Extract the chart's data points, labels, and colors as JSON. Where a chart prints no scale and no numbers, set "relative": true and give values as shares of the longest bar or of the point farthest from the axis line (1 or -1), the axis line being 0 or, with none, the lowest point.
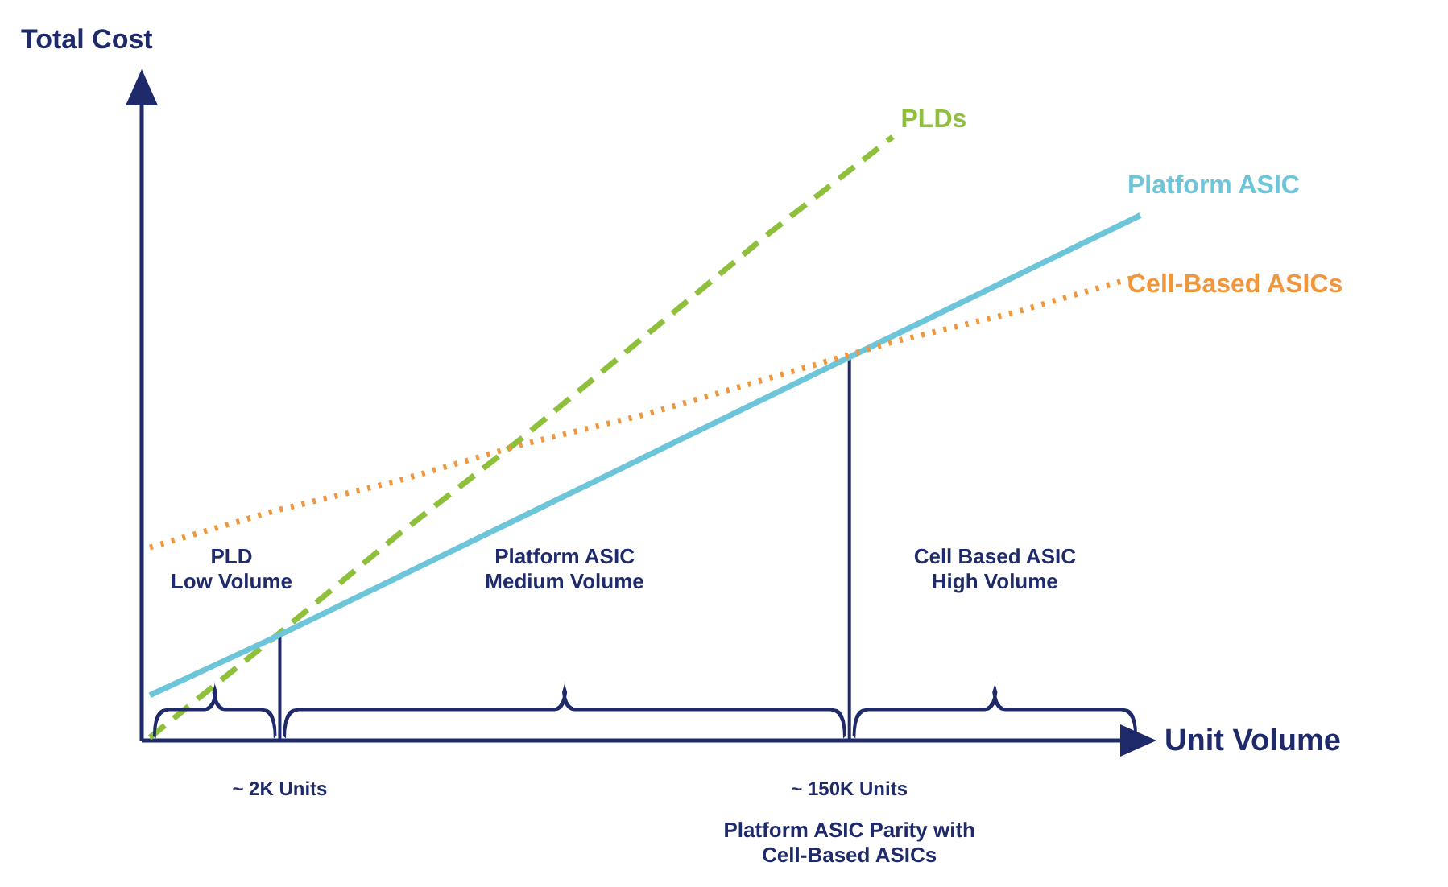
{
  "chart_data": {
    "type": "line",
    "relative": true,
    "xlabel": "Unit Volume",
    "ylabel": "Total Cost",
    "categories": [
      null,
      null,
      null,
      null,
      null,
      null,
      null,
      null,
      null
    ],
    "series": [
      {
        "name": "PLDs",
        "color": "#8fc03c",
        "line_style": "dashed",
        "values": [
          0.005,
          0.17,
          0.34,
          0.5,
          0.67,
          0.84,
          1.0,
          null,
          null
        ]
      },
      {
        "name": "Platform ASIC",
        "color": "#6cc5d8",
        "line_style": "solid",
        "values": [
          0.075,
          0.17,
          0.27,
          0.37,
          0.47,
          0.57,
          0.67,
          0.77,
          0.87
        ]
      },
      {
        "name": "Cell-Based ASICs",
        "color": "#f0963c",
        "line_style": "dotted",
        "values": [
          0.32,
          0.38,
          0.43,
          0.49,
          0.54,
          0.6,
          0.66,
          0.71,
          0.77
        ]
      }
    ],
    "annotations": [
      "PLD\nLow Volume",
      "Platform ASIC\nMedium Volume",
      "Cell Based ASIC\nHigh Volume",
      "~ 2K Units",
      "~ 150K  Units",
      "Platform ASIC Parity with\nCell-Based ASICs"
    ]
  }
}
